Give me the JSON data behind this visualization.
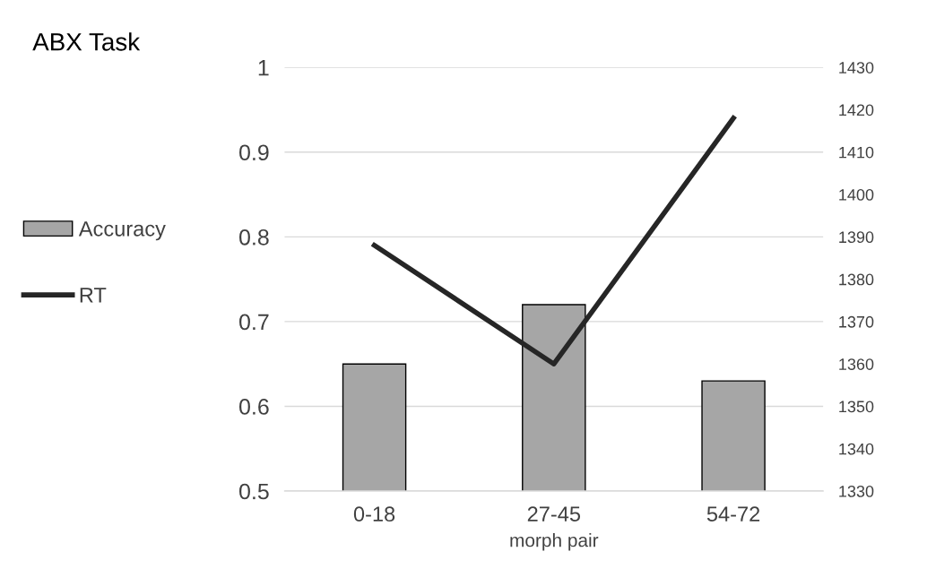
{
  "chart_data": {
    "type": "bar",
    "title": "ABX Task",
    "xlabel": "morph pair",
    "categories": [
      "0-18",
      "27-45",
      "54-72"
    ],
    "series": [
      {
        "name": "Accuracy",
        "color": "#a6a6a6",
        "values": [
          0.65,
          0.72,
          0.63
        ]
      },
      {
        "name": "RT",
        "type": "line",
        "axis": "y2",
        "color": "#262626",
        "values": [
          1388,
          1360,
          1418
        ]
      }
    ],
    "ylim": [
      0.5,
      1
    ],
    "yticks": [
      0.5,
      0.6,
      0.7,
      0.8,
      0.9,
      1
    ],
    "y2lim": [
      1330,
      1430
    ],
    "y2ticks": [
      1330,
      1340,
      1350,
      1360,
      1370,
      1380,
      1390,
      1400,
      1410,
      1420,
      1430
    ],
    "grid": "y",
    "legend": "left",
    "marker": "none",
    "line_style": "solid"
  }
}
